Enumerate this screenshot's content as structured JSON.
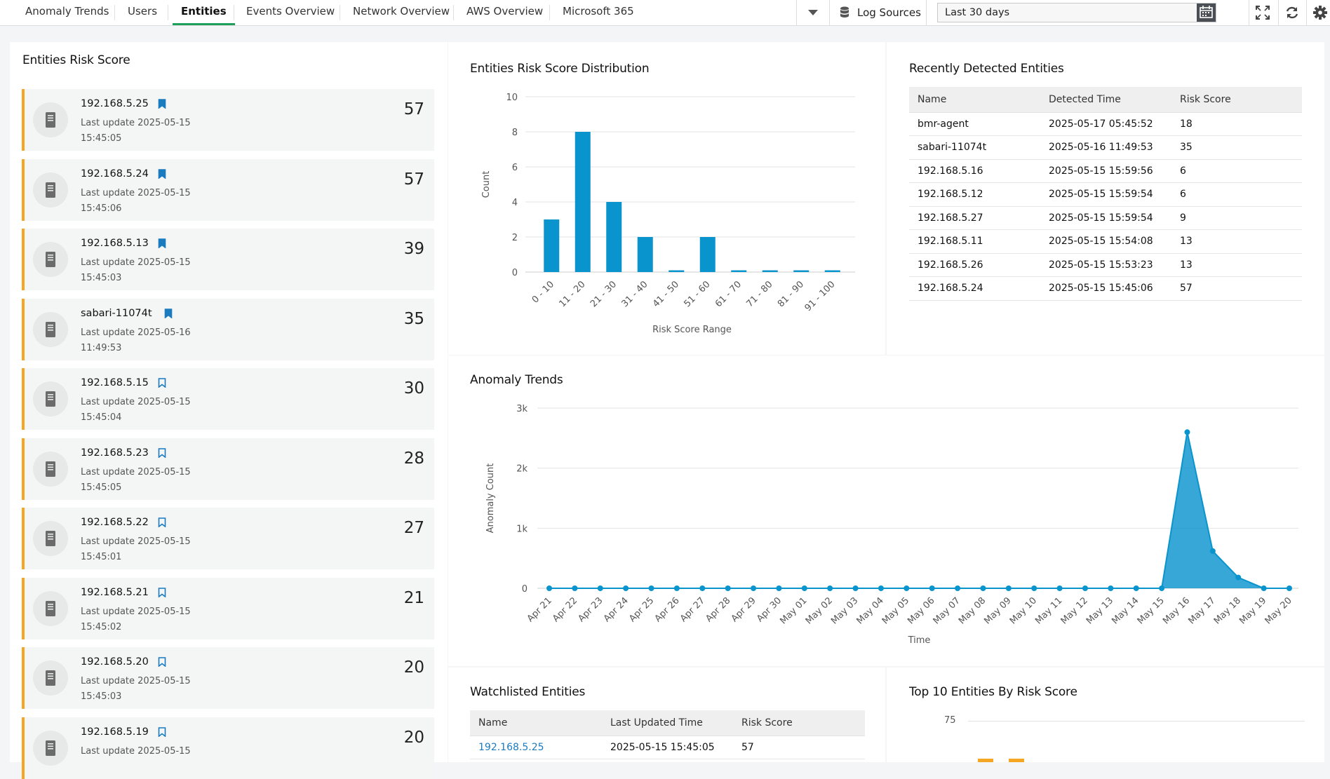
{
  "tabs": [
    {
      "label": "Anomaly Trends",
      "active": false
    },
    {
      "label": "Users",
      "active": false
    },
    {
      "label": "Entities",
      "active": true
    },
    {
      "label": "Events Overview",
      "active": false
    },
    {
      "label": "Network Overview",
      "active": false
    },
    {
      "label": "AWS Overview",
      "active": false
    },
    {
      "label": "Microsoft 365",
      "active": false
    }
  ],
  "toolbar": {
    "log_sources_label": "Log Sources",
    "date_range_value": "Last 30 days",
    "icons": [
      "chevron-down-icon",
      "database-icon",
      "calendar-icon",
      "fullscreen-icon",
      "refresh-icon",
      "gear-icon"
    ]
  },
  "risk_panel": {
    "title": "Entities Risk Score",
    "entities": [
      {
        "name": "192.168.5.25",
        "date": "Last update 2025-05-15",
        "time": "15:45:05",
        "score": "57",
        "watchlisted": true
      },
      {
        "name": "192.168.5.24",
        "date": "Last update 2025-05-15",
        "time": "15:45:06",
        "score": "57",
        "watchlisted": true
      },
      {
        "name": "192.168.5.13",
        "date": "Last update 2025-05-15",
        "time": "15:45:03",
        "score": "39",
        "watchlisted": true
      },
      {
        "name": "sabari-11074t",
        "date": "Last update 2025-05-16",
        "time": "11:49:53",
        "score": "35",
        "watchlisted": true
      },
      {
        "name": "192.168.5.15",
        "date": "Last update 2025-05-15",
        "time": "15:45:04",
        "score": "30",
        "watchlisted": false
      },
      {
        "name": "192.168.5.23",
        "date": "Last update 2025-05-15",
        "time": "15:45:05",
        "score": "28",
        "watchlisted": false
      },
      {
        "name": "192.168.5.22",
        "date": "Last update 2025-05-15",
        "time": "15:45:01",
        "score": "27",
        "watchlisted": false
      },
      {
        "name": "192.168.5.21",
        "date": "Last update 2025-05-15",
        "time": "15:45:02",
        "score": "21",
        "watchlisted": false
      },
      {
        "name": "192.168.5.20",
        "date": "Last update 2025-05-15",
        "time": "15:45:03",
        "score": "20",
        "watchlisted": false
      },
      {
        "name": "192.168.5.19",
        "date": "Last update 2025-05-15",
        "time": "",
        "score": "20",
        "watchlisted": false
      }
    ]
  },
  "distribution_panel": {
    "title": "Entities Risk Score Distribution"
  },
  "recent_panel": {
    "title": "Recently Detected Entities",
    "columns": [
      "Name",
      "Detected Time",
      "Risk Score"
    ],
    "rows": [
      [
        "bmr-agent",
        "2025-05-17 05:45:52",
        "18"
      ],
      [
        "sabari-11074t",
        "2025-05-16 11:49:53",
        "35"
      ],
      [
        "192.168.5.16",
        "2025-05-15 15:59:56",
        "6"
      ],
      [
        "192.168.5.12",
        "2025-05-15 15:59:54",
        "6"
      ],
      [
        "192.168.5.27",
        "2025-05-15 15:59:54",
        "9"
      ],
      [
        "192.168.5.11",
        "2025-05-15 15:54:08",
        "13"
      ],
      [
        "192.168.5.26",
        "2025-05-15 15:53:23",
        "13"
      ],
      [
        "192.168.5.24",
        "2025-05-15 15:45:06",
        "57"
      ]
    ]
  },
  "trends_panel": {
    "title": "Anomaly Trends"
  },
  "watchlist_panel": {
    "title": "Watchlisted Entities",
    "columns": [
      "Name",
      "Last Updated Time",
      "Risk Score"
    ],
    "rows": [
      [
        "192.168.5.25",
        "2025-05-15 15:45:05",
        "57"
      ]
    ]
  },
  "top10_panel": {
    "title": "Top 10 Entities By Risk Score",
    "visible_tick": "75"
  },
  "colors": {
    "accent": "#1fa05a",
    "bar": "#0a94cd",
    "card_border": "#f5a623",
    "link": "#1a7bbf",
    "top10_bar": "#f5a623"
  },
  "chart_data": [
    {
      "type": "bar",
      "title": "Entities Risk Score Distribution",
      "categories": [
        "0 - 10",
        "11 - 20",
        "21 - 30",
        "31 - 40",
        "41 - 50",
        "51 - 60",
        "61 - 70",
        "71 - 80",
        "81 - 90",
        "91 - 100"
      ],
      "values": [
        3,
        8,
        4,
        2,
        0,
        2,
        0,
        0,
        0,
        0
      ],
      "xlabel": "Risk Score Range",
      "ylabel": "Count",
      "ylim": [
        0,
        10
      ],
      "yticks": [
        "0",
        "2",
        "4",
        "6",
        "8",
        "10"
      ],
      "grid": true
    },
    {
      "type": "area",
      "title": "Anomaly Trends",
      "categories": [
        "Apr 21",
        "Apr 22",
        "Apr 23",
        "Apr 24",
        "Apr 25",
        "Apr 26",
        "Apr 27",
        "Apr 28",
        "Apr 29",
        "Apr 30",
        "May 01",
        "May 02",
        "May 03",
        "May 04",
        "May 05",
        "May 06",
        "May 07",
        "May 08",
        "May 09",
        "May 10",
        "May 11",
        "May 12",
        "May 13",
        "May 14",
        "May 15",
        "May 16",
        "May 17",
        "May 18",
        "May 19",
        "May 20"
      ],
      "values": [
        0,
        0,
        0,
        0,
        0,
        0,
        0,
        0,
        0,
        0,
        0,
        0,
        0,
        0,
        0,
        0,
        0,
        0,
        0,
        0,
        0,
        0,
        0,
        0,
        0,
        2600,
        620,
        180,
        0,
        0
      ],
      "xlabel": "Time",
      "ylabel": "Anomaly Count",
      "ylim": [
        0,
        3000
      ],
      "yticks": [
        "0",
        "1k",
        "2k",
        "3k"
      ],
      "grid": true
    }
  ]
}
